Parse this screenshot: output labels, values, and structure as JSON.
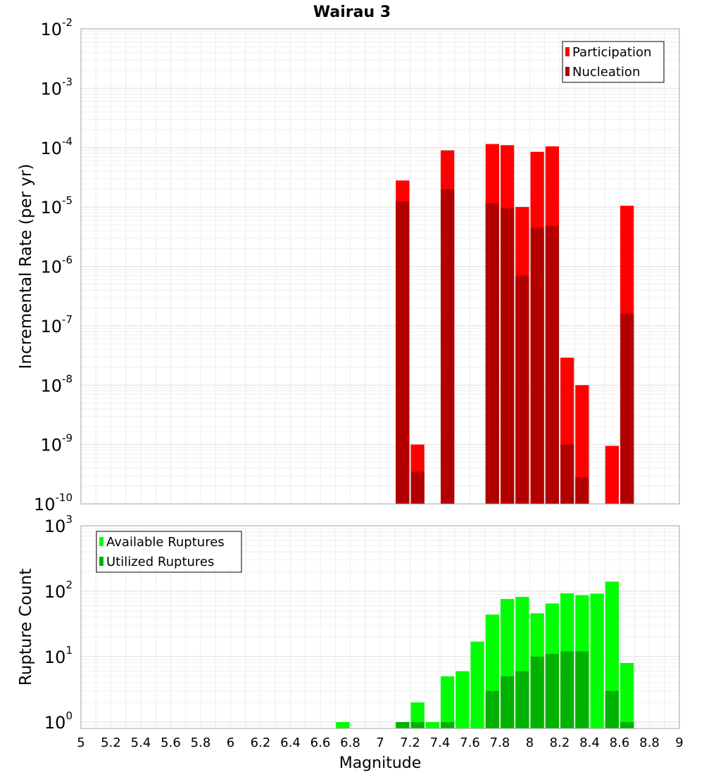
{
  "title": "Wairau 3",
  "xlabel": "Magnitude",
  "chart_data": [
    {
      "type": "bar",
      "scale": "log",
      "ylabel": "Incremental Rate (per yr)",
      "ylim": [
        1e-10,
        0.01
      ],
      "xlim": [
        5,
        9
      ],
      "x_ticks": [
        5,
        5.2,
        5.4,
        5.6,
        5.8,
        6,
        6.2,
        6.4,
        6.6,
        6.8,
        7,
        7.2,
        7.4,
        7.6,
        7.8,
        8,
        8.2,
        8.4,
        8.6,
        8.8,
        9
      ],
      "y_tick_exponents": [
        -10,
        -9,
        -8,
        -7,
        -6,
        -5,
        -4,
        -3,
        -2
      ],
      "legend_position": "top-right",
      "series": [
        {
          "name": "Participation",
          "color": "#ff0000",
          "points": [
            {
              "x": 7.15,
              "y": 2.8e-05
            },
            {
              "x": 7.25,
              "y": 1e-09
            },
            {
              "x": 7.45,
              "y": 9e-05
            },
            {
              "x": 7.75,
              "y": 0.000115
            },
            {
              "x": 7.85,
              "y": 0.00011
            },
            {
              "x": 7.95,
              "y": 1e-05
            },
            {
              "x": 8.05,
              "y": 8.5e-05
            },
            {
              "x": 8.15,
              "y": 0.000105
            },
            {
              "x": 8.25,
              "y": 2.9e-08
            },
            {
              "x": 8.35,
              "y": 1e-08
            },
            {
              "x": 8.55,
              "y": 9.5e-10
            },
            {
              "x": 8.65,
              "y": 1.05e-05
            }
          ]
        },
        {
          "name": "Nucleation",
          "color": "#b20000",
          "points": [
            {
              "x": 7.15,
              "y": 1.25e-05
            },
            {
              "x": 7.25,
              "y": 3.5e-10
            },
            {
              "x": 7.45,
              "y": 2e-05
            },
            {
              "x": 7.75,
              "y": 1.15e-05
            },
            {
              "x": 7.85,
              "y": 9.5e-06
            },
            {
              "x": 7.95,
              "y": 7e-07
            },
            {
              "x": 8.05,
              "y": 4.5e-06
            },
            {
              "x": 8.15,
              "y": 4.8e-06
            },
            {
              "x": 8.25,
              "y": 1e-09
            },
            {
              "x": 8.35,
              "y": 2.8e-10
            },
            {
              "x": 8.65,
              "y": 1.6e-07
            }
          ]
        }
      ]
    },
    {
      "type": "bar",
      "scale": "log",
      "ylabel": "Rupture Count",
      "ylim": [
        0.8,
        1000
      ],
      "xlim": [
        5,
        9
      ],
      "y_tick_exponents": [
        0,
        1,
        2,
        3
      ],
      "legend_position": "top-left",
      "series": [
        {
          "name": "Available Ruptures",
          "color": "#00ff00",
          "points": [
            {
              "x": 6.75,
              "y": 1
            },
            {
              "x": 7.15,
              "y": 1
            },
            {
              "x": 7.25,
              "y": 2
            },
            {
              "x": 7.35,
              "y": 1
            },
            {
              "x": 7.45,
              "y": 5
            },
            {
              "x": 7.55,
              "y": 6
            },
            {
              "x": 7.65,
              "y": 17
            },
            {
              "x": 7.75,
              "y": 44
            },
            {
              "x": 7.85,
              "y": 76
            },
            {
              "x": 7.95,
              "y": 82
            },
            {
              "x": 8.05,
              "y": 46
            },
            {
              "x": 8.15,
              "y": 65
            },
            {
              "x": 8.25,
              "y": 93
            },
            {
              "x": 8.35,
              "y": 87
            },
            {
              "x": 8.45,
              "y": 92
            },
            {
              "x": 8.55,
              "y": 140
            },
            {
              "x": 8.65,
              "y": 8
            }
          ]
        },
        {
          "name": "Utilized Ruptures",
          "color": "#00b200",
          "points": [
            {
              "x": 7.15,
              "y": 1
            },
            {
              "x": 7.25,
              "y": 1
            },
            {
              "x": 7.45,
              "y": 1
            },
            {
              "x": 7.75,
              "y": 3
            },
            {
              "x": 7.85,
              "y": 5
            },
            {
              "x": 7.95,
              "y": 6
            },
            {
              "x": 8.05,
              "y": 10
            },
            {
              "x": 8.15,
              "y": 11
            },
            {
              "x": 8.25,
              "y": 12
            },
            {
              "x": 8.35,
              "y": 12
            },
            {
              "x": 8.55,
              "y": 3
            },
            {
              "x": 8.65,
              "y": 1
            }
          ]
        }
      ]
    }
  ]
}
